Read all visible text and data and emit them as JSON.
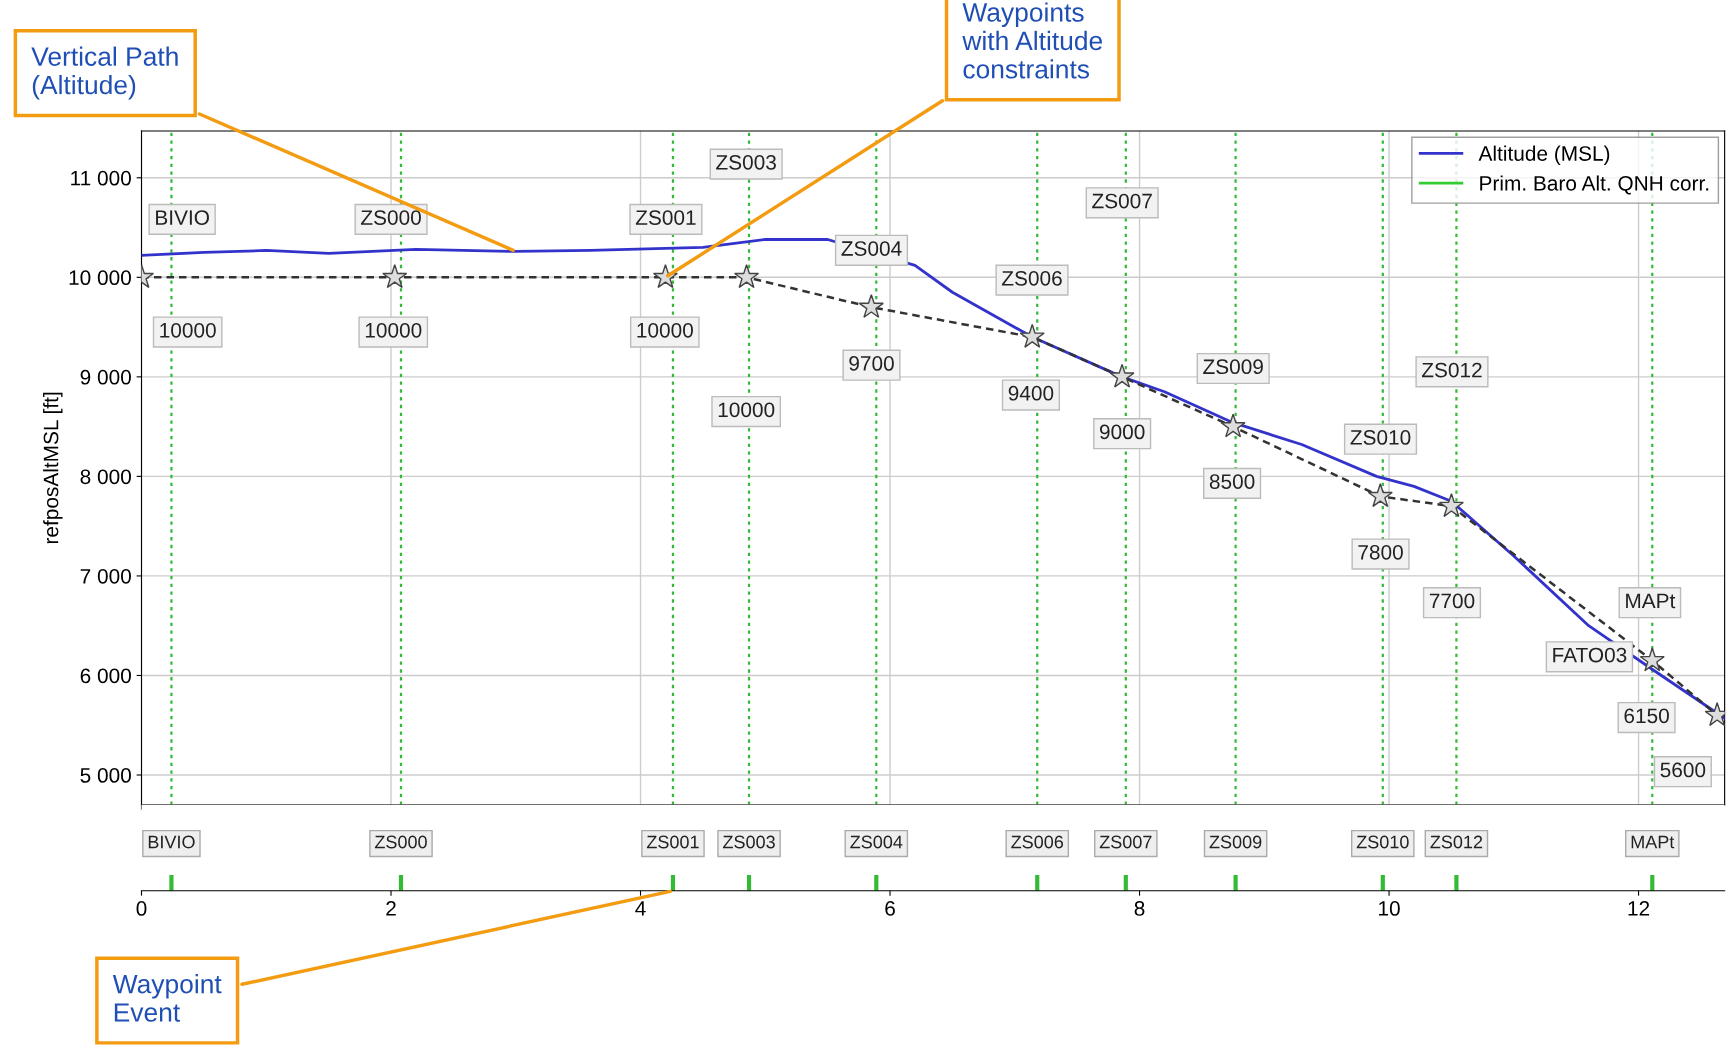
{
  "chart_data": {
    "type": "line",
    "ylabel": "refposAltMSL [ft]",
    "xlim": [
      0,
      12.69
    ],
    "ylim": [
      4700,
      11470
    ],
    "xticks": [
      0,
      2,
      4,
      6,
      8,
      10,
      12
    ],
    "yticks": [
      {
        "value": 5000,
        "label": "5 000"
      },
      {
        "value": 6000,
        "label": "6 000"
      },
      {
        "value": 7000,
        "label": "7 000"
      },
      {
        "value": 8000,
        "label": "8 000"
      },
      {
        "value": 9000,
        "label": "9 000"
      },
      {
        "value": 10000,
        "label": "10 000"
      },
      {
        "value": 11000,
        "label": "11 000"
      }
    ],
    "grid": true,
    "legend": "top right",
    "series": [
      {
        "name": "Altitude (MSL)",
        "color": "#3333cc",
        "x": [
          0,
          0.5,
          1.0,
          1.5,
          2.2,
          3.0,
          3.6,
          4.5,
          5.0,
          5.5,
          6.2,
          6.5,
          7.14,
          7.86,
          8.2,
          8.75,
          9.3,
          9.9,
          10.2,
          10.5,
          11.0,
          11.6,
          12.1,
          12.69
        ],
        "values": [
          10220,
          10250,
          10270,
          10240,
          10280,
          10260,
          10270,
          10300,
          10380,
          10380,
          10120,
          9850,
          9400,
          9000,
          8850,
          8540,
          8320,
          8000,
          7900,
          7750,
          7200,
          6500,
          6070,
          5570
        ]
      },
      {
        "name": "Prim. Baro Alt. QNH corr.",
        "color": "#33cc33",
        "values": [
          null
        ]
      },
      {
        "color": "#333333",
        "line_style": "dashed",
        "marker": "star",
        "x": [
          0,
          2.03,
          4.2,
          4.85,
          5.85,
          7.14,
          7.86,
          8.75,
          9.93,
          10.5,
          12.11,
          12.63
        ],
        "values": [
          10000,
          10000,
          10000,
          10000,
          9700,
          9400,
          9000,
          8500,
          7800,
          7700,
          6150,
          5600
        ]
      }
    ],
    "ref_lines": [
      {
        "axis": "x",
        "value": 0.24,
        "label": "BIVIO",
        "color": "#33bb33",
        "line_style": "dotted"
      },
      {
        "axis": "x",
        "value": 2.08,
        "label": "ZS000",
        "color": "#33bb33",
        "line_style": "dotted"
      },
      {
        "axis": "x",
        "value": 4.26,
        "label": "ZS001",
        "color": "#33bb33",
        "line_style": "dotted"
      },
      {
        "axis": "x",
        "value": 4.87,
        "label": "ZS003",
        "color": "#33bb33",
        "line_style": "dotted"
      },
      {
        "axis": "x",
        "value": 5.89,
        "label": "ZS004",
        "color": "#33bb33",
        "line_style": "dotted"
      },
      {
        "axis": "x",
        "value": 7.18,
        "label": "ZS006",
        "color": "#33bb33",
        "line_style": "dotted"
      },
      {
        "axis": "x",
        "value": 7.89,
        "label": "ZS007",
        "color": "#33bb33",
        "line_style": "dotted"
      },
      {
        "axis": "x",
        "value": 8.77,
        "label": "ZS009",
        "color": "#33bb33",
        "line_style": "dotted"
      },
      {
        "axis": "x",
        "value": 9.95,
        "label": "ZS010",
        "color": "#33bb33",
        "line_style": "dotted"
      },
      {
        "axis": "x",
        "value": 10.54,
        "label": "ZS012",
        "color": "#33bb33",
        "line_style": "dotted"
      },
      {
        "axis": "x",
        "value": 12.11,
        "label": "MAPt",
        "color": "#33bb33",
        "line_style": "dotted"
      }
    ],
    "annotations": [
      "BIVIO",
      "ZS000",
      "ZS001",
      "ZS003",
      "ZS004",
      "ZS006",
      "ZS007",
      "ZS009",
      "ZS010",
      "ZS012",
      "MAPt",
      "FATO03",
      "10000",
      "10000",
      "10000",
      "10000",
      "9700",
      "9400",
      "9000",
      "8500",
      "7800",
      "7700",
      "6150",
      "5600",
      {
        "text": "Vertical Path\n(Altitude)",
        "x": 3.0,
        "y": 10260
      },
      {
        "text": "Waypoints\nwith Altitude\nconstraints",
        "x": 4.2,
        "y": 10000
      },
      "Waypoint\nEvent"
    ]
  }
}
